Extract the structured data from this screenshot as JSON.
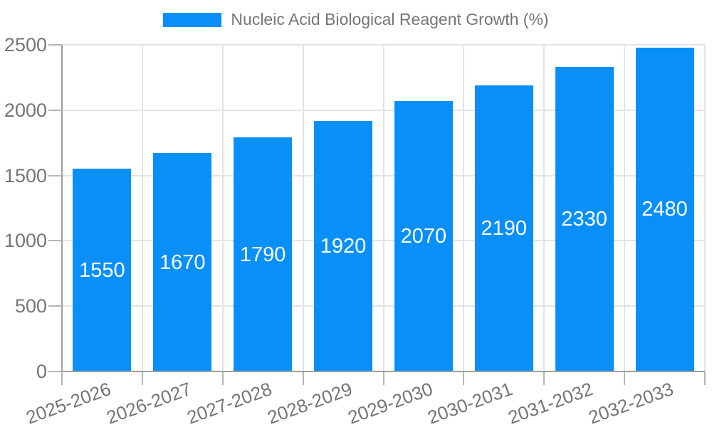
{
  "chart_data": {
    "type": "bar",
    "title": "Nucleic Acid Biological Reagent Growth (%)",
    "categories": [
      "2025-2026",
      "2026-2027",
      "2027-2028",
      "2028-2029",
      "2029-2030",
      "2030-2031",
      "2031-2032",
      "2032-2033"
    ],
    "values": [
      1550,
      1670,
      1790,
      1920,
      2070,
      2190,
      2330,
      2480
    ],
    "xlabel": "",
    "ylabel": "",
    "ylim": [
      0,
      2500
    ],
    "yticks": [
      0,
      500,
      1000,
      1500,
      2000,
      2500
    ],
    "grid": true,
    "legend_position": "top-center",
    "bar_label_position": "inside-center",
    "x_tick_rotation_deg": -20
  },
  "colors": {
    "bar": "#0990f8",
    "bar_value_label": "#ffffff",
    "axis_text": "#757575",
    "axis_line": "#9e9e9e",
    "tick_mark": "#b5b5b5",
    "grid_line": "#e3e3e3",
    "background": "#ffffff"
  }
}
